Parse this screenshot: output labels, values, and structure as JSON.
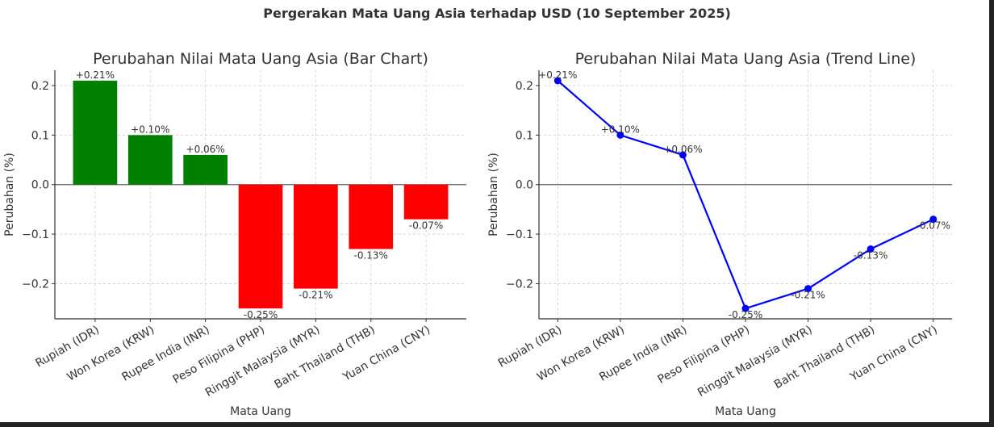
{
  "suptitle": "Pergerakan Mata Uang Asia terhadap USD (10 September 2025)",
  "chart_data": [
    {
      "type": "bar",
      "title": "Perubahan Nilai Mata Uang Asia (Bar Chart)",
      "xlabel": "Mata Uang",
      "ylabel": "Perubahan (%)",
      "categories": [
        "Rupiah (IDR)",
        "Won Korea (KRW)",
        "Rupee India (INR)",
        "Peso Filipina (PHP)",
        "Ringgit Malaysia (MYR)",
        "Baht Thailand (THB)",
        "Yuan China (CNY)"
      ],
      "values": [
        0.21,
        0.1,
        0.06,
        -0.25,
        -0.21,
        -0.13,
        -0.07
      ],
      "data_labels": [
        "+0.21%",
        "+0.10%",
        "+0.06%",
        "-0.25%",
        "-0.21%",
        "-0.13%",
        "-0.07%"
      ],
      "ylim": [
        -0.271,
        0.231
      ],
      "yticks": [
        0.2,
        0.1,
        0.0,
        -0.1,
        -0.2
      ],
      "ytick_labels": [
        "0.2",
        "0.1",
        "0.0",
        "−0.1",
        "−0.2"
      ],
      "colors": {
        "positive": "#008000",
        "negative": "#ff0000"
      },
      "grid": true
    },
    {
      "type": "line",
      "title": "Perubahan Nilai Mata Uang Asia (Trend Line)",
      "xlabel": "Mata Uang",
      "ylabel": "Perubahan (%)",
      "categories": [
        "Rupiah (IDR)",
        "Won Korea (KRW)",
        "Rupee India (INR)",
        "Peso Filipina (PHP)",
        "Ringgit Malaysia (MYR)",
        "Baht Thailand (THB)",
        "Yuan China (CNY)"
      ],
      "values": [
        0.21,
        0.1,
        0.06,
        -0.25,
        -0.21,
        -0.13,
        -0.07
      ],
      "data_labels": [
        "+0.21%",
        "+0.10%",
        "+0.06%",
        "-0.25%",
        "-0.21%",
        "-0.13%",
        "-0.07%"
      ],
      "ylim": [
        -0.271,
        0.231
      ],
      "yticks": [
        0.2,
        0.1,
        0.0,
        -0.1,
        -0.2
      ],
      "ytick_labels": [
        "0.2",
        "0.1",
        "0.0",
        "−0.1",
        "−0.2"
      ],
      "color": "#0000ff",
      "grid": true
    }
  ]
}
